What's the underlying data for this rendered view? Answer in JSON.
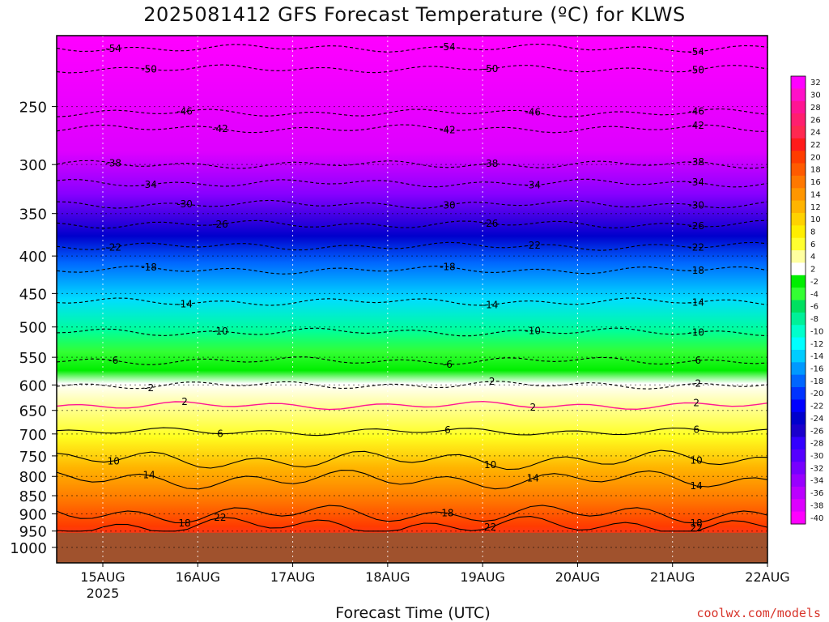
{
  "chart_data": {
    "type": "heatmap",
    "title": "2025081412 GFS Forecast Temperature (ºC) for KLWS",
    "xlabel": "Forecast Time (UTC)",
    "credit": "coolwx.com/models",
    "x_ticks": [
      "15AUG",
      "16AUG",
      "17AUG",
      "18AUG",
      "19AUG",
      "20AUG",
      "21AUG",
      "22AUG"
    ],
    "x_sublabel": "2025",
    "y_ticks": [
      "250",
      "300",
      "350",
      "400",
      "450",
      "500",
      "550",
      "600",
      "650",
      "700",
      "750",
      "800",
      "850",
      "900",
      "950",
      "1000"
    ],
    "y_values_hpa": [
      250,
      300,
      350,
      400,
      450,
      500,
      550,
      600,
      650,
      700,
      750,
      800,
      850,
      900,
      950,
      1000
    ],
    "y_axis": "pressure (hPa), log scale, top ~200, bottom ~1050",
    "ground_level_hpa": 955,
    "colorbar_labels": [
      "32",
      "30",
      "28",
      "26",
      "24",
      "22",
      "20",
      "18",
      "16",
      "14",
      "12",
      "10",
      "8",
      "6",
      "4",
      "2",
      "-2",
      "-4",
      "-6",
      "-8",
      "-10",
      "-12",
      "-14",
      "-16",
      "-18",
      "-20",
      "-22",
      "-24",
      "-26",
      "-28",
      "-30",
      "-32",
      "-34",
      "-36",
      "-38",
      "-40"
    ],
    "colorbar_colors": [
      "#ff00ff",
      "#ff10c8",
      "#ff1493",
      "#ff1e6e",
      "#ff2850",
      "#ff1a1a",
      "#ff3c00",
      "#ff5a00",
      "#ff7800",
      "#ff9600",
      "#ffb400",
      "#ffd200",
      "#ffee00",
      "#ffff30",
      "#ffffa0",
      "#ffffff",
      "#00ee00",
      "#33ff33",
      "#00e060",
      "#00f098",
      "#00ffcc",
      "#00ffff",
      "#00ccff",
      "#0099ff",
      "#0066ff",
      "#0033ff",
      "#0000ff",
      "#0000cc",
      "#1a00cc",
      "#3300ff",
      "#5500ff",
      "#7700ff",
      "#9900ff",
      "#bb00ff",
      "#dd00ff",
      "#ff00ff"
    ],
    "contours": [
      {
        "temp": -54,
        "label": "-54",
        "pressure_hpa": 208
      },
      {
        "temp": -50,
        "label": "-50",
        "pressure_hpa": 222
      },
      {
        "temp": -46,
        "label": "-46",
        "pressure_hpa": 255
      },
      {
        "temp": -42,
        "label": "-42",
        "pressure_hpa": 268
      },
      {
        "temp": -38,
        "label": "-38",
        "pressure_hpa": 300
      },
      {
        "temp": -34,
        "label": "-34",
        "pressure_hpa": 318
      },
      {
        "temp": -30,
        "label": "-30",
        "pressure_hpa": 340
      },
      {
        "temp": -26,
        "label": "-26",
        "pressure_hpa": 362
      },
      {
        "temp": -22,
        "label": "-22",
        "pressure_hpa": 388
      },
      {
        "temp": -18,
        "label": "-18",
        "pressure_hpa": 418
      },
      {
        "temp": -14,
        "label": "-14",
        "pressure_hpa": 462
      },
      {
        "temp": -10,
        "label": "-10",
        "pressure_hpa": 508
      },
      {
        "temp": -6,
        "label": "-6",
        "pressure_hpa": 556
      },
      {
        "temp": -2,
        "label": "-2",
        "pressure_hpa": 600
      },
      {
        "temp": 2,
        "label": "2",
        "pressure_hpa": 640
      },
      {
        "temp": 6,
        "label": "6",
        "pressure_hpa": 695
      },
      {
        "temp": 10,
        "label": "10",
        "pressure_hpa": 760
      },
      {
        "temp": 14,
        "label": "14",
        "pressure_hpa": 808
      },
      {
        "temp": 18,
        "label": "18",
        "pressure_hpa": 900
      },
      {
        "temp": 22,
        "label": "22",
        "pressure_hpa": 935
      }
    ],
    "grid": true
  }
}
